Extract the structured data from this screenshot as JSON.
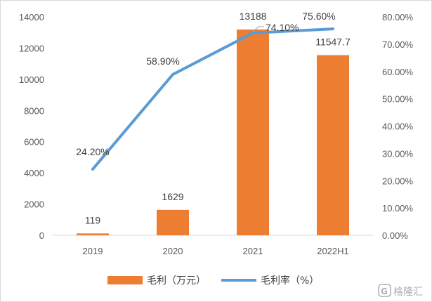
{
  "chart_data": {
    "type": "bar+line",
    "categories": [
      "2019",
      "2020",
      "2021",
      "2022H1"
    ],
    "series": [
      {
        "name": "毛利（万元）",
        "type": "bar",
        "axis": "left",
        "values": [
          119,
          1629,
          13188,
          11547.7
        ],
        "labels": [
          "119",
          "1629",
          "13188",
          "11547.7"
        ],
        "color": "#ed7d31"
      },
      {
        "name": "毛利率（%）",
        "type": "line",
        "axis": "right",
        "values": [
          24.2,
          58.9,
          74.1,
          75.6
        ],
        "labels": [
          "24.20%",
          "58.90%",
          "74.10%",
          "75.60%"
        ],
        "color": "#5b9bd5"
      }
    ],
    "y_left": {
      "range": [
        0,
        14000
      ],
      "ticks": [
        "0",
        "2000",
        "4000",
        "6000",
        "8000",
        "10000",
        "12000",
        "14000"
      ]
    },
    "y_right": {
      "range": [
        0,
        80
      ],
      "ticks": [
        "0.00%",
        "10.00%",
        "20.00%",
        "30.00%",
        "40.00%",
        "50.00%",
        "60.00%",
        "70.00%",
        "80.00%"
      ]
    },
    "grid": false,
    "legend_position": "bottom"
  },
  "watermark": {
    "icon": "gelonghui-logo-icon",
    "text": "格隆汇"
  }
}
